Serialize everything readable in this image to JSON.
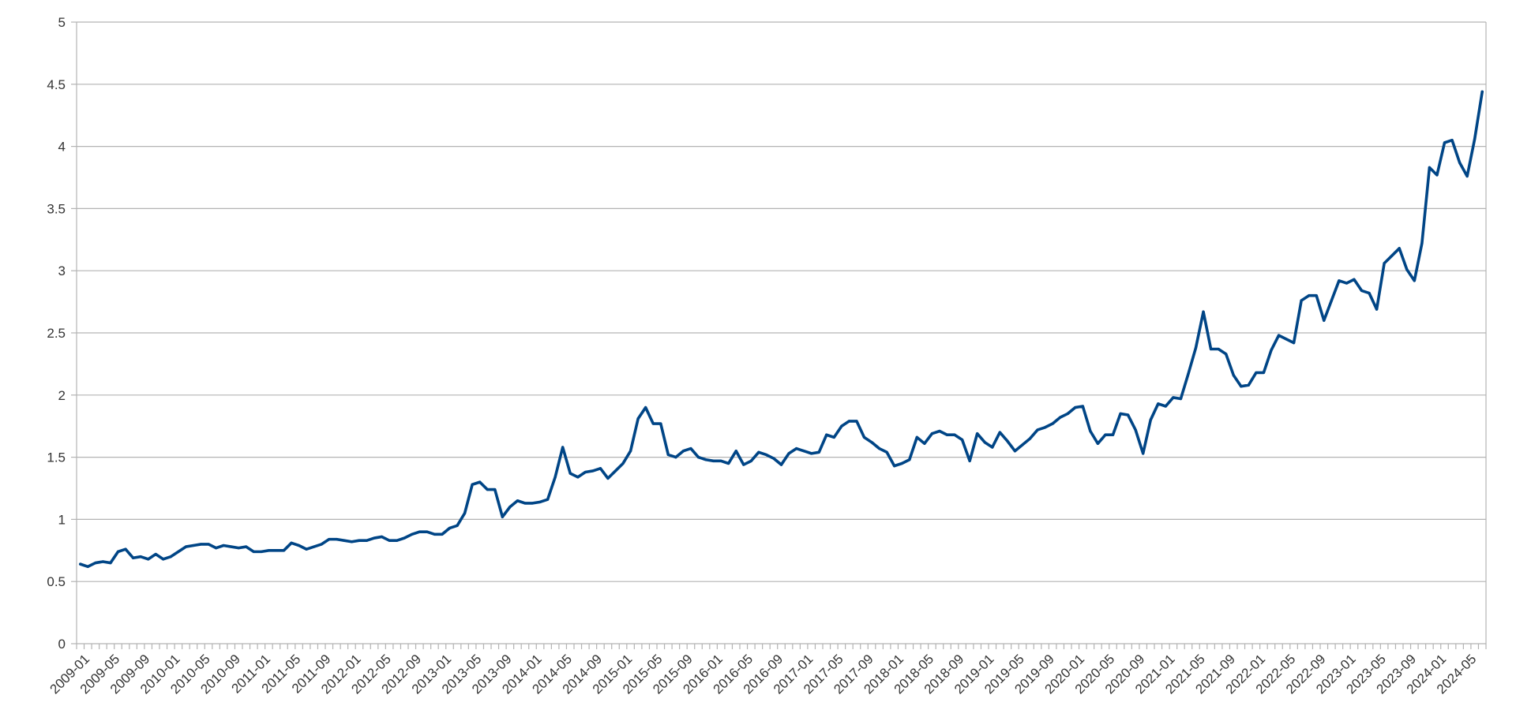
{
  "chart_data": {
    "type": "line",
    "title": "",
    "xlabel": "",
    "ylabel": "",
    "ylim": [
      0,
      5
    ],
    "y_ticks": [
      "0",
      "0.5",
      "1",
      "1.5",
      "2",
      "2.5",
      "3",
      "3.5",
      "4",
      "4.5",
      "5"
    ],
    "y_tick_values": [
      0,
      0.5,
      1,
      1.5,
      2,
      2.5,
      3,
      3.5,
      4,
      4.5,
      5
    ],
    "grid": "horizontal",
    "legend": "none",
    "colors": {
      "line": "#004586",
      "grid": "#b3b3b3",
      "text": "#333333"
    },
    "x_tick_labels": [
      "2009-01",
      "2009-05",
      "2009-09",
      "2010-01",
      "2010-05",
      "2010-09",
      "2011-01",
      "2011-05",
      "2011-09",
      "2012-01",
      "2012-05",
      "2012-09",
      "2013-01",
      "2013-05",
      "2013-09",
      "2014-01",
      "2014-05",
      "2014-09",
      "2015-01",
      "2015-05",
      "2015-09",
      "2016-01",
      "2016-05",
      "2016-09",
      "2017-01",
      "2017-05",
      "2017-09",
      "2018-01",
      "2018-05",
      "2018-09",
      "2019-01",
      "2019-05",
      "2019-09",
      "2020-01",
      "2020-05",
      "2020-09",
      "2021-01",
      "2021-05",
      "2021-09",
      "2022-01",
      "2022-05",
      "2022-09",
      "2023-01",
      "2023-05",
      "2023-09",
      "2024-01",
      "2024-05"
    ],
    "start_month": "2009-01",
    "values": [
      0.64,
      0.62,
      0.65,
      0.66,
      0.65,
      0.74,
      0.76,
      0.69,
      0.7,
      0.68,
      0.72,
      0.68,
      0.7,
      0.74,
      0.78,
      0.79,
      0.8,
      0.8,
      0.77,
      0.79,
      0.78,
      0.77,
      0.78,
      0.74,
      0.74,
      0.75,
      0.75,
      0.75,
      0.81,
      0.79,
      0.76,
      0.78,
      0.8,
      0.84,
      0.84,
      0.83,
      0.82,
      0.83,
      0.83,
      0.85,
      0.86,
      0.83,
      0.83,
      0.85,
      0.88,
      0.9,
      0.9,
      0.88,
      0.88,
      0.93,
      0.95,
      1.05,
      1.28,
      1.3,
      1.24,
      1.24,
      1.02,
      1.1,
      1.15,
      1.13,
      1.13,
      1.14,
      1.16,
      1.34,
      1.58,
      1.37,
      1.34,
      1.38,
      1.39,
      1.41,
      1.33,
      1.39,
      1.45,
      1.55,
      1.81,
      1.9,
      1.77,
      1.77,
      1.52,
      1.5,
      1.55,
      1.57,
      1.5,
      1.48,
      1.47,
      1.47,
      1.45,
      1.55,
      1.44,
      1.47,
      1.54,
      1.52,
      1.49,
      1.44,
      1.53,
      1.57,
      1.55,
      1.53,
      1.54,
      1.68,
      1.66,
      1.75,
      1.79,
      1.79,
      1.66,
      1.62,
      1.57,
      1.54,
      1.43,
      1.45,
      1.48,
      1.66,
      1.61,
      1.69,
      1.71,
      1.68,
      1.68,
      1.64,
      1.47,
      1.69,
      1.62,
      1.58,
      1.7,
      1.63,
      1.55,
      1.6,
      1.65,
      1.72,
      1.74,
      1.77,
      1.82,
      1.85,
      1.9,
      1.91,
      1.71,
      1.61,
      1.68,
      1.68,
      1.85,
      1.84,
      1.72,
      1.53,
      1.8,
      1.93,
      1.91,
      1.98,
      1.97,
      2.17,
      2.38,
      2.67,
      2.37,
      2.37,
      2.33,
      2.16,
      2.07,
      2.08,
      2.18,
      2.18,
      2.36,
      2.48,
      2.45,
      2.42,
      2.76,
      2.8,
      2.8,
      2.6,
      2.76,
      2.92,
      2.9,
      2.93,
      2.84,
      2.82,
      2.69,
      3.06,
      3.12,
      3.18,
      3.01,
      2.92,
      3.22,
      3.83,
      3.77,
      4.03,
      4.05,
      3.87,
      3.76,
      4.06,
      4.44
    ]
  }
}
